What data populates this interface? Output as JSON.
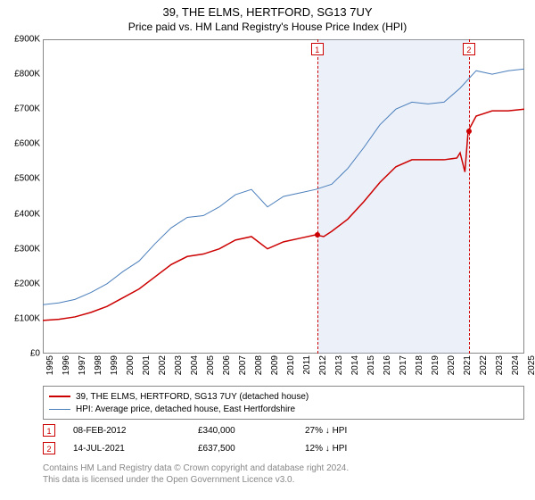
{
  "title": "39, THE ELMS, HERTFORD, SG13 7UY",
  "subtitle": "Price paid vs. HM Land Registry's House Price Index (HPI)",
  "chart": {
    "type": "line",
    "x_start_year": 1995,
    "x_end_year": 2025,
    "ylim": [
      0,
      900
    ],
    "ytick_step": 100,
    "ytick_prefix": "£",
    "ytick_suffix": "K",
    "background_color": "#ffffff",
    "grid_color": "#dddddd",
    "axis_color": "#888888",
    "shade_color": "rgba(180,200,230,0.25)",
    "shade_start": 2012.1,
    "shade_end": 2021.55,
    "series": {
      "property": {
        "color": "#cc0000",
        "width": 1.5,
        "label": "39, THE ELMS, HERTFORD, SG13 7UY (detached house)",
        "points": [
          [
            1995,
            95
          ],
          [
            1996,
            98
          ],
          [
            1997,
            105
          ],
          [
            1998,
            118
          ],
          [
            1999,
            135
          ],
          [
            2000,
            160
          ],
          [
            2001,
            185
          ],
          [
            2002,
            220
          ],
          [
            2003,
            255
          ],
          [
            2004,
            278
          ],
          [
            2005,
            285
          ],
          [
            2006,
            300
          ],
          [
            2007,
            325
          ],
          [
            2008,
            335
          ],
          [
            2009,
            300
          ],
          [
            2010,
            320
          ],
          [
            2011,
            330
          ],
          [
            2012,
            340
          ],
          [
            2012.5,
            335
          ],
          [
            2013,
            350
          ],
          [
            2014,
            385
          ],
          [
            2015,
            435
          ],
          [
            2016,
            490
          ],
          [
            2017,
            535
          ],
          [
            2018,
            555
          ],
          [
            2019,
            555
          ],
          [
            2020,
            555
          ],
          [
            2020.8,
            560
          ],
          [
            2021,
            575
          ],
          [
            2021.3,
            520
          ],
          [
            2021.5,
            637
          ],
          [
            2022,
            680
          ],
          [
            2023,
            695
          ],
          [
            2024,
            695
          ],
          [
            2025,
            700
          ]
        ],
        "sale_dots": [
          {
            "x": 2012.1,
            "y": 340
          },
          {
            "x": 2021.55,
            "y": 637
          }
        ]
      },
      "hpi": {
        "color": "#4a7ebb",
        "width": 1,
        "label": "HPI: Average price, detached house, East Hertfordshire",
        "points": [
          [
            1995,
            140
          ],
          [
            1996,
            145
          ],
          [
            1997,
            155
          ],
          [
            1998,
            175
          ],
          [
            1999,
            200
          ],
          [
            2000,
            235
          ],
          [
            2001,
            265
          ],
          [
            2002,
            315
          ],
          [
            2003,
            360
          ],
          [
            2004,
            390
          ],
          [
            2005,
            395
          ],
          [
            2006,
            420
          ],
          [
            2007,
            455
          ],
          [
            2008,
            470
          ],
          [
            2009,
            420
          ],
          [
            2010,
            450
          ],
          [
            2011,
            460
          ],
          [
            2012,
            470
          ],
          [
            2013,
            485
          ],
          [
            2014,
            530
          ],
          [
            2015,
            590
          ],
          [
            2016,
            655
          ],
          [
            2017,
            700
          ],
          [
            2018,
            720
          ],
          [
            2019,
            715
          ],
          [
            2020,
            720
          ],
          [
            2021,
            760
          ],
          [
            2022,
            810
          ],
          [
            2023,
            800
          ],
          [
            2024,
            810
          ],
          [
            2025,
            815
          ]
        ]
      }
    },
    "vlines": [
      {
        "x": 2012.1,
        "marker": "1"
      },
      {
        "x": 2021.55,
        "marker": "2"
      }
    ]
  },
  "legend": [
    {
      "key": "property"
    },
    {
      "key": "hpi"
    }
  ],
  "sales": [
    {
      "marker": "1",
      "date": "08-FEB-2012",
      "price": "£340,000",
      "diff": "27% ↓ HPI"
    },
    {
      "marker": "2",
      "date": "14-JUL-2021",
      "price": "£637,500",
      "diff": "12% ↓ HPI"
    }
  ],
  "attribution": {
    "line1": "Contains HM Land Registry data © Crown copyright and database right 2024.",
    "line2": "This data is licensed under the Open Government Licence v3.0."
  }
}
